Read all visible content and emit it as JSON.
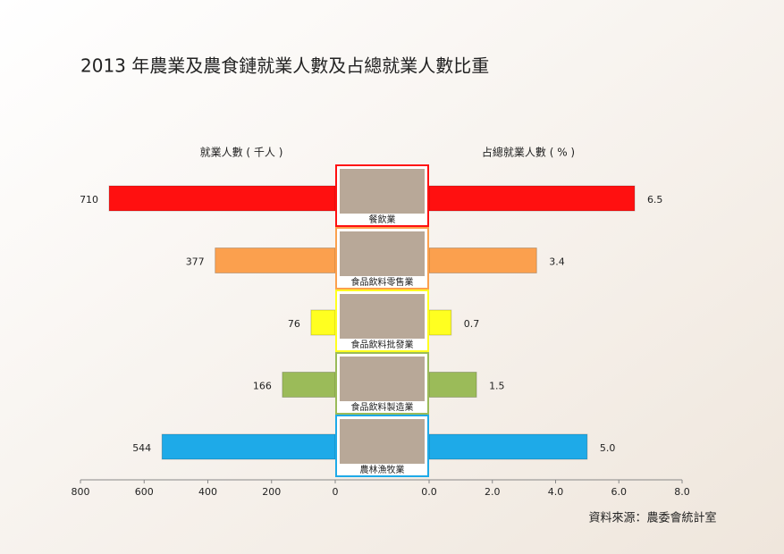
{
  "chart_data": {
    "type": "butterfly",
    "title": "2013 年農業及農食鏈就業人數及占總就業人數比重",
    "categories": [
      "餐飲業",
      "食品飲料零售業",
      "食品飲料批發業",
      "食品飲料製造業",
      "農林漁牧業"
    ],
    "colors": [
      "#ff1010",
      "#fba04e",
      "#ffff20",
      "#9bbb59",
      "#1eaae8"
    ],
    "series": [
      {
        "name": "就業人數 ( 千人 )",
        "values": [
          710,
          377,
          76,
          166,
          544
        ]
      },
      {
        "name": "占總就業人數 ( % )",
        "axis": "x2",
        "values": [
          6.5,
          3.4,
          0.7,
          1.5,
          5.0
        ],
        "value_labels": [
          "6.5",
          "3.4",
          "0.7",
          "1.5",
          "5.0"
        ]
      }
    ],
    "xlim": [
      800,
      0
    ],
    "xticks": [
      800,
      600,
      400,
      200,
      0
    ],
    "x2lim": [
      0,
      8
    ],
    "x2ticks": [
      {
        "value": 0,
        "label": "0.0"
      },
      {
        "value": 2,
        "label": "2.0"
      },
      {
        "value": 4,
        "label": "4.0"
      },
      {
        "value": 6,
        "label": "6.0"
      },
      {
        "value": 8,
        "label": "8.0"
      }
    ],
    "source": "資料來源：農委會統計室"
  }
}
